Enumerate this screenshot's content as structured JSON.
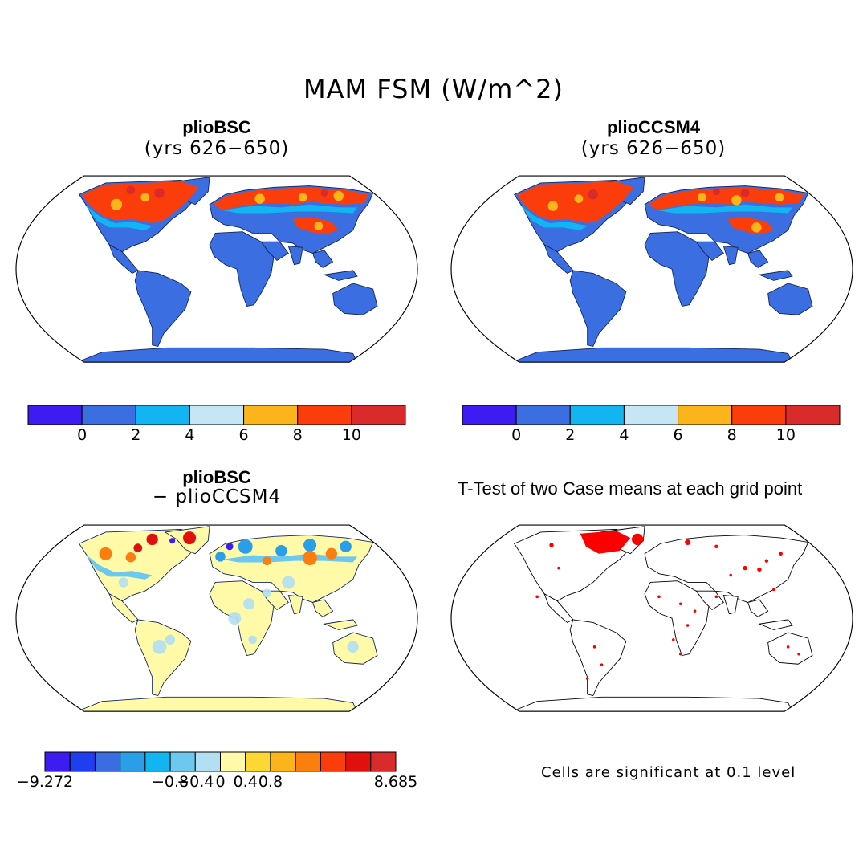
{
  "title": "MAM FSM (W/m^2)",
  "panels": {
    "top_left": {
      "title": "plioBSC",
      "subtitle": "(yrs 626−650)"
    },
    "top_right": {
      "title": "plioCCSM4",
      "subtitle": "(yrs 626−650)"
    },
    "bottom_left": {
      "title": "plioBSC",
      "subtitle": "− plioCCSM4"
    },
    "bottom_right": {
      "title": "T-Test of two Case means at each grid point",
      "note": "Cells are significant at 0.1 level"
    }
  },
  "colorbar_fsm": {
    "colors": [
      "#3d1cf2",
      "#3b6fe1",
      "#12b5f2",
      "#c6e6f5",
      "#fbb419",
      "#fb3d0c",
      "#d92b2b"
    ],
    "labels": [
      "0",
      "2",
      "4",
      "6",
      "8",
      "10"
    ]
  },
  "colorbar_diff": {
    "colors": [
      "#3d1cf2",
      "#1f3ef0",
      "#3c6de0",
      "#2a9ee8",
      "#12b5f2",
      "#6dc8ef",
      "#b3dff2",
      "#fffaa8",
      "#fdd834",
      "#fbb419",
      "#fb7e0f",
      "#fb3d0c",
      "#e0100e",
      "#d92b2b"
    ],
    "labels": [
      "−9.272",
      "−0.8",
      "−0.4",
      "0",
      "0.4",
      "0.8",
      "8.685"
    ]
  },
  "map_colors": {
    "land_base": "#3b6fe1",
    "snow_high": "#fb3d0c",
    "snow_mid": "#fbb419",
    "snow_edge": "#12b5f2",
    "diff_land": "#fffaa8",
    "diff_pos": "#fb7e0f",
    "diff_neg": "#2a9ee8",
    "significant": "#fb0000"
  }
}
